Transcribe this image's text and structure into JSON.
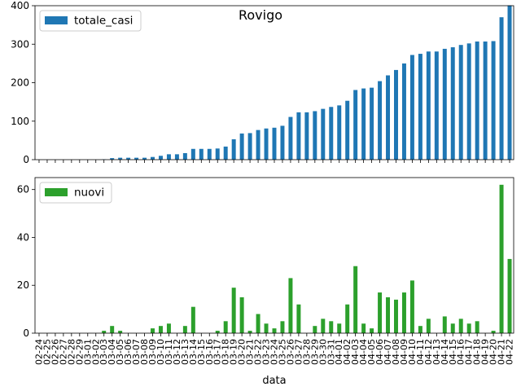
{
  "chart_data": [
    {
      "type": "bar",
      "title": "Rovigo",
      "legend": {
        "placement": "top-left"
      },
      "xlabel": "",
      "ylabel": "",
      "ylim": [
        0,
        400
      ],
      "yticks": [
        0,
        100,
        200,
        300,
        400
      ],
      "show_x_tick_labels": false,
      "color": "#1f77b4",
      "categories": [
        "02-24",
        "02-25",
        "02-26",
        "02-27",
        "02-28",
        "02-29",
        "03-01",
        "03-02",
        "03-03",
        "03-04",
        "03-05",
        "03-06",
        "03-07",
        "03-08",
        "03-09",
        "03-10",
        "03-11",
        "03-12",
        "03-13",
        "03-14",
        "03-15",
        "03-16",
        "03-17",
        "03-18",
        "03-19",
        "03-20",
        "03-21",
        "03-22",
        "03-23",
        "03-24",
        "03-25",
        "03-26",
        "03-27",
        "03-28",
        "03-29",
        "03-30",
        "03-31",
        "04-01",
        "04-02",
        "04-03",
        "04-04",
        "04-05",
        "04-06",
        "04-07",
        "04-08",
        "04-09",
        "04-10",
        "04-11",
        "04-12",
        "04-13",
        "04-14",
        "04-15",
        "04-16",
        "04-17",
        "04-18",
        "04-19",
        "04-20",
        "04-21",
        "04-22"
      ],
      "series": [
        {
          "name": "totale_casi",
          "values": [
            0,
            0,
            0,
            0,
            0,
            0,
            0,
            0,
            1,
            4,
            5,
            5,
            5,
            5,
            7,
            10,
            14,
            14,
            17,
            28,
            28,
            28,
            29,
            34,
            53,
            68,
            69,
            77,
            81,
            83,
            88,
            111,
            123,
            123,
            126,
            132,
            137,
            141,
            153,
            181,
            185,
            187,
            204,
            219,
            233,
            250,
            272,
            275,
            281,
            281,
            288,
            292,
            298,
            302,
            307,
            307,
            308,
            370,
            401
          ]
        }
      ]
    },
    {
      "type": "bar",
      "title": "",
      "legend": {
        "placement": "top-left"
      },
      "xlabel": "data",
      "ylabel": "",
      "ylim": [
        0,
        65
      ],
      "yticks": [
        0,
        20,
        40,
        60
      ],
      "show_x_tick_labels": true,
      "color": "#2ca02c",
      "categories": [
        "02-24",
        "02-25",
        "02-26",
        "02-27",
        "02-28",
        "02-29",
        "03-01",
        "03-02",
        "03-03",
        "03-04",
        "03-05",
        "03-06",
        "03-07",
        "03-08",
        "03-09",
        "03-10",
        "03-11",
        "03-12",
        "03-13",
        "03-14",
        "03-15",
        "03-16",
        "03-17",
        "03-18",
        "03-19",
        "03-20",
        "03-21",
        "03-22",
        "03-23",
        "03-24",
        "03-25",
        "03-26",
        "03-27",
        "03-28",
        "03-29",
        "03-30",
        "03-31",
        "04-01",
        "04-02",
        "04-03",
        "04-04",
        "04-05",
        "04-06",
        "04-07",
        "04-08",
        "04-09",
        "04-10",
        "04-11",
        "04-12",
        "04-13",
        "04-14",
        "04-15",
        "04-16",
        "04-17",
        "04-18",
        "04-19",
        "04-20",
        "04-21",
        "04-22"
      ],
      "series": [
        {
          "name": "nuovi",
          "values": [
            0,
            0,
            0,
            0,
            0,
            0,
            0,
            0,
            1,
            3,
            1,
            0,
            0,
            0,
            2,
            3,
            4,
            0,
            3,
            11,
            0,
            0,
            1,
            5,
            19,
            15,
            1,
            8,
            4,
            2,
            5,
            23,
            12,
            0,
            3,
            6,
            5,
            4,
            12,
            28,
            4,
            2,
            17,
            15,
            14,
            17,
            22,
            3,
            6,
            0,
            7,
            4,
            6,
            4,
            5,
            0,
            1,
            62,
            31
          ]
        }
      ]
    }
  ]
}
